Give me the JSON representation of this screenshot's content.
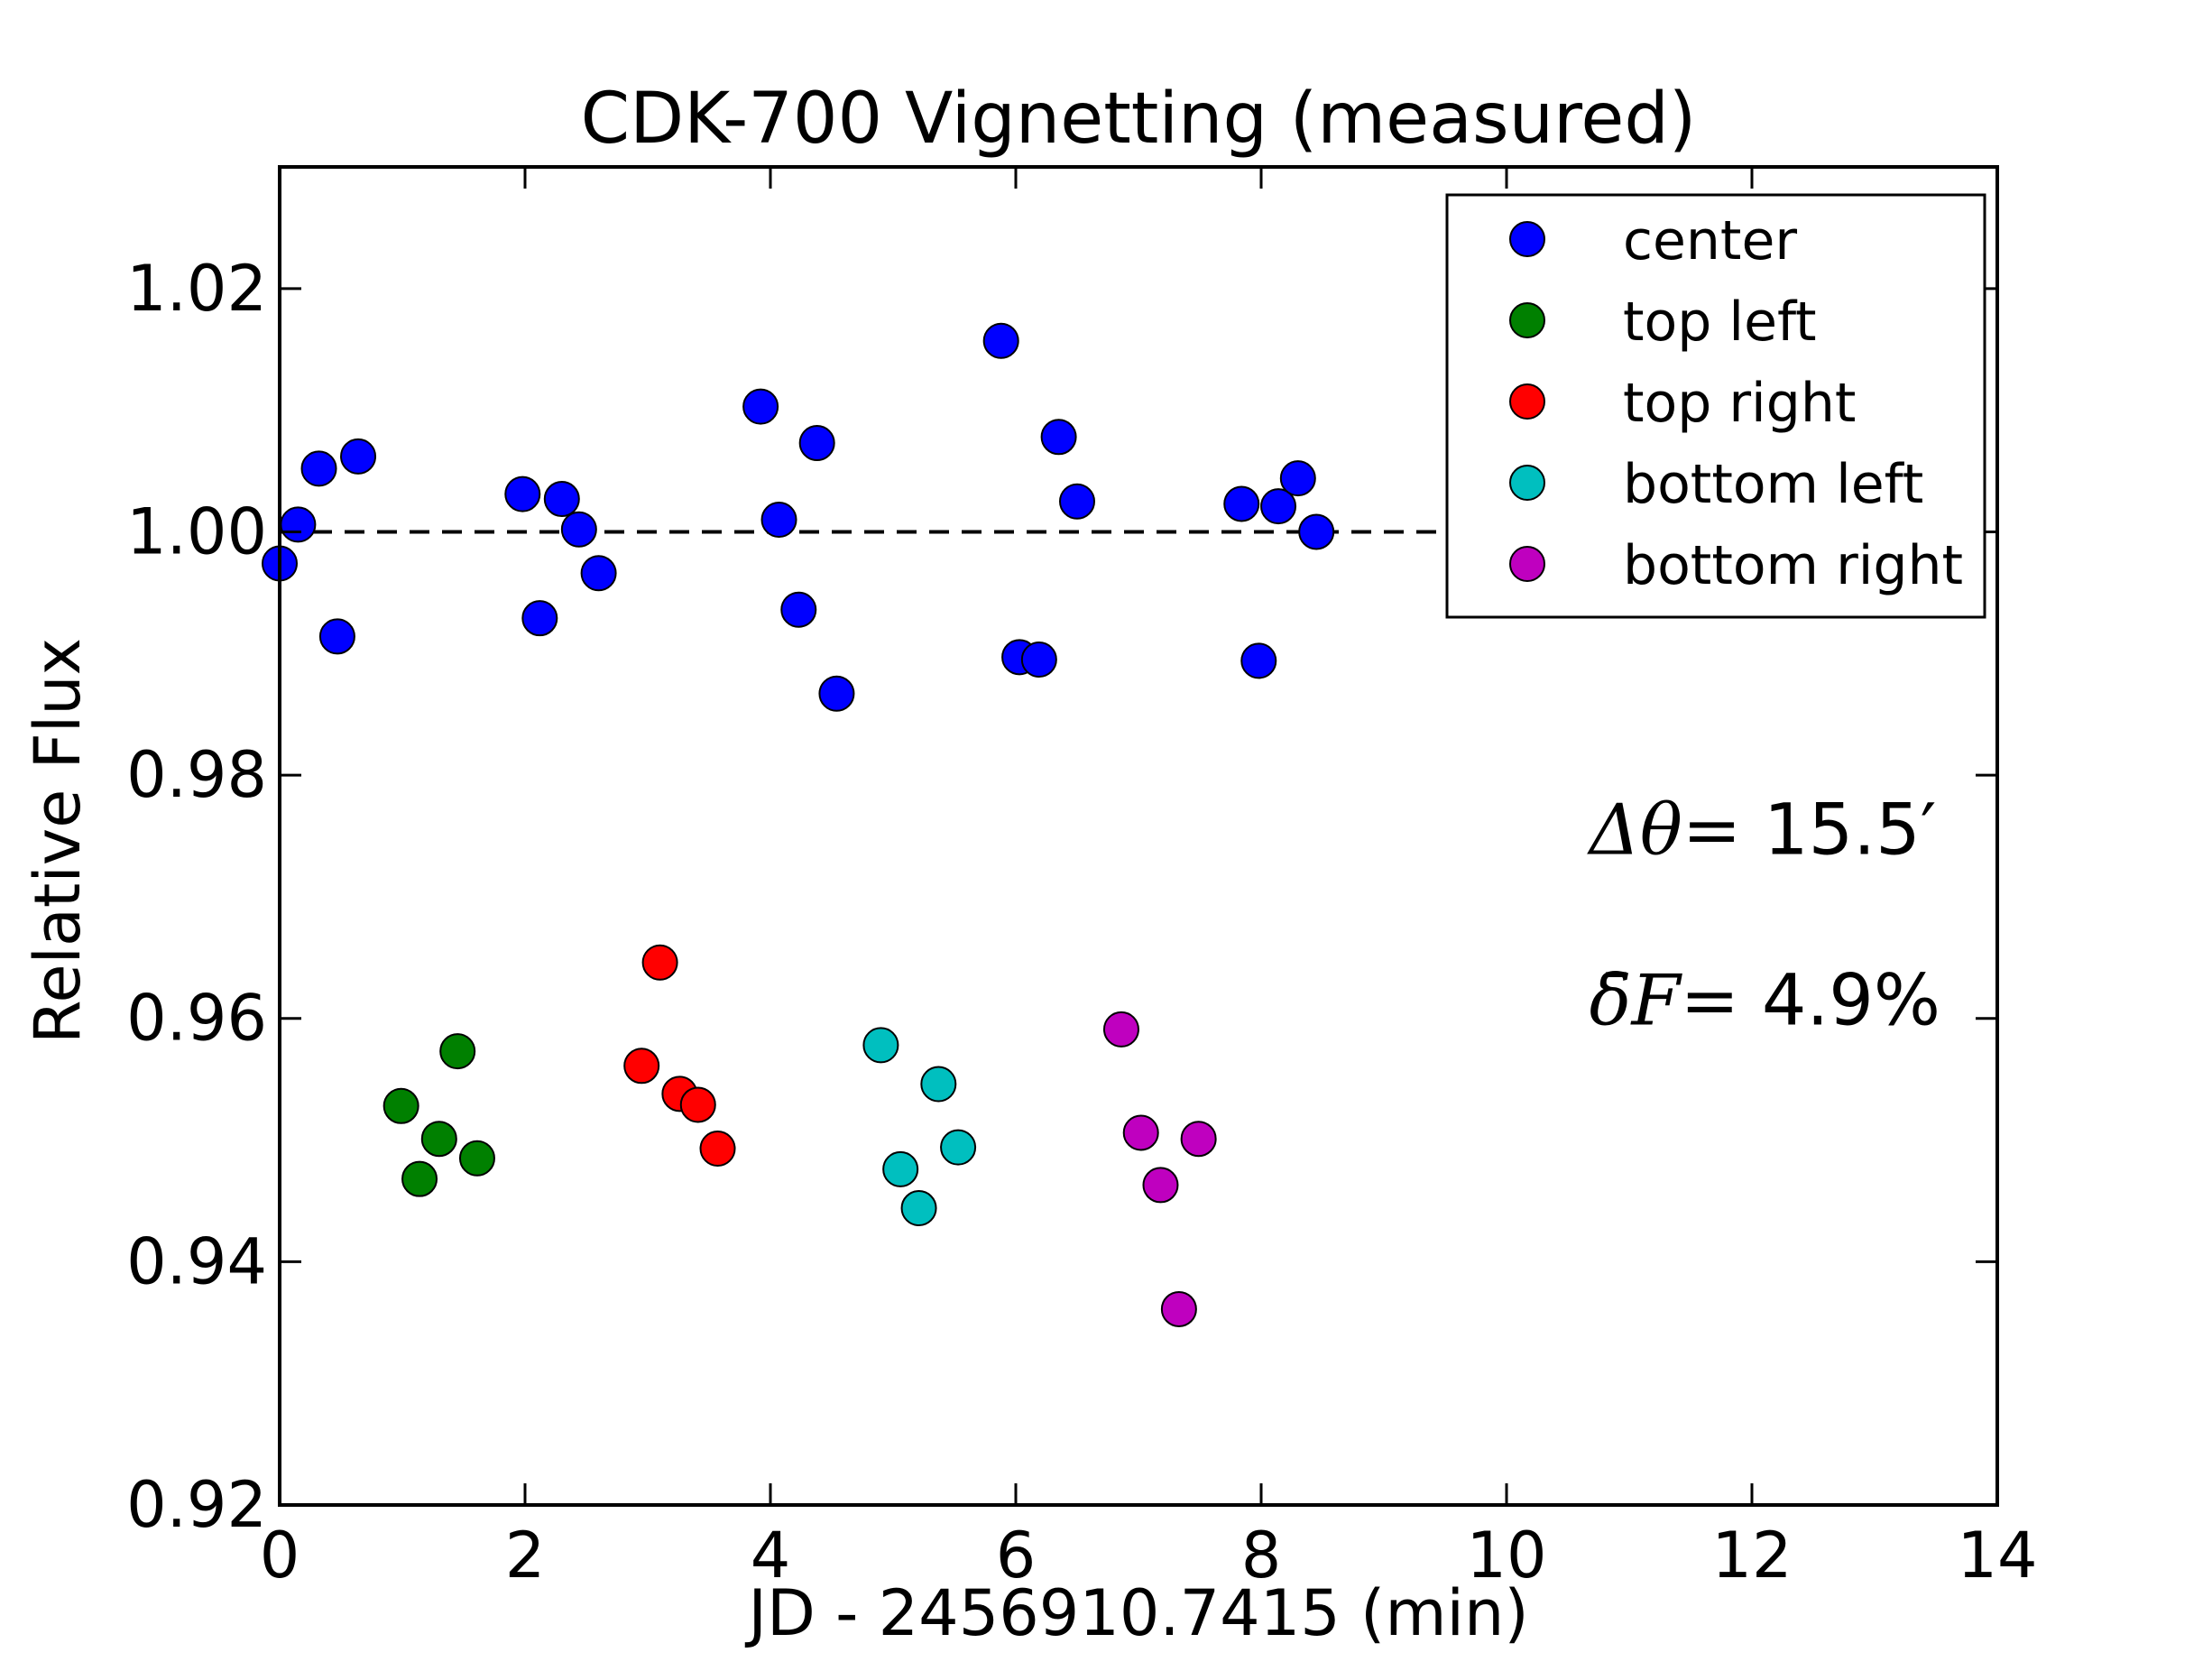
{
  "chart_data": {
    "type": "scatter",
    "title": "CDK-700 Vignetting (measured)",
    "xlabel": "JD - 2456910.7415 (min)",
    "ylabel": "Relative Flux",
    "xlim": [
      0,
      14
    ],
    "ylim": [
      0.92,
      1.03
    ],
    "xticks": [
      0,
      2,
      4,
      6,
      8,
      10,
      12,
      14
    ],
    "xtick_labels": [
      "0",
      "2",
      "4",
      "6",
      "8",
      "10",
      "12",
      "14"
    ],
    "yticks": [
      0.92,
      0.94,
      0.96,
      0.98,
      1.0,
      1.02
    ],
    "ytick_labels": [
      "0.92",
      "0.94",
      "0.96",
      "0.98",
      "1.00",
      "1.02"
    ],
    "reference_line": {
      "y": 1.0,
      "style": "dashed",
      "color": "#000000",
      "x_range": [
        0,
        10.1
      ]
    },
    "legend_position": "top-right",
    "annotations": [
      {
        "math": "Δθ=",
        "value": "15.5′",
        "x": 11.6,
        "y": 0.9735
      },
      {
        "math": "δ̄F=",
        "value": "4.9%",
        "x": 11.6,
        "y": 0.9595
      }
    ],
    "series": [
      {
        "name": "center",
        "color": "#0000ff",
        "points": [
          [
            0.0,
            0.9974
          ],
          [
            0.15,
            1.0006
          ],
          [
            0.32,
            1.0052
          ],
          [
            0.47,
            0.9914
          ],
          [
            0.64,
            1.0062
          ],
          [
            1.98,
            1.0031
          ],
          [
            2.12,
            0.9929
          ],
          [
            2.3,
            1.0027
          ],
          [
            2.44,
            1.0002
          ],
          [
            2.6,
            0.9966
          ],
          [
            3.92,
            1.0103
          ],
          [
            4.07,
            1.001
          ],
          [
            4.23,
            0.9936
          ],
          [
            4.38,
            1.0073
          ],
          [
            4.54,
            0.9867
          ],
          [
            5.88,
            1.0157
          ],
          [
            6.03,
            0.9897
          ],
          [
            6.19,
            0.9895
          ],
          [
            6.35,
            1.0078
          ],
          [
            6.5,
            1.0025
          ],
          [
            7.84,
            1.0023
          ],
          [
            7.98,
            0.9894
          ],
          [
            8.14,
            1.0021
          ],
          [
            8.3,
            1.0044
          ],
          [
            8.45,
            1.0
          ]
        ]
      },
      {
        "name": "top left",
        "color": "#008000",
        "points": [
          [
            0.99,
            0.9528
          ],
          [
            1.14,
            0.9468
          ],
          [
            1.3,
            0.9501
          ],
          [
            1.45,
            0.9573
          ],
          [
            1.61,
            0.9485
          ]
        ]
      },
      {
        "name": "top right",
        "color": "#ff0000",
        "points": [
          [
            2.95,
            0.9561
          ],
          [
            3.1,
            0.9646
          ],
          [
            3.26,
            0.9538
          ],
          [
            3.41,
            0.9529
          ],
          [
            3.57,
            0.9493
          ]
        ]
      },
      {
        "name": "bottom left",
        "color": "#00bfbf",
        "points": [
          [
            4.9,
            0.9578
          ],
          [
            5.06,
            0.9476
          ],
          [
            5.21,
            0.9444
          ],
          [
            5.37,
            0.9546
          ],
          [
            5.53,
            0.9494
          ]
        ]
      },
      {
        "name": "bottom right",
        "color": "#bf00bf",
        "points": [
          [
            6.86,
            0.9591
          ],
          [
            7.02,
            0.9506
          ],
          [
            7.18,
            0.9463
          ],
          [
            7.33,
            0.9361
          ],
          [
            7.49,
            0.9501
          ]
        ]
      }
    ]
  }
}
